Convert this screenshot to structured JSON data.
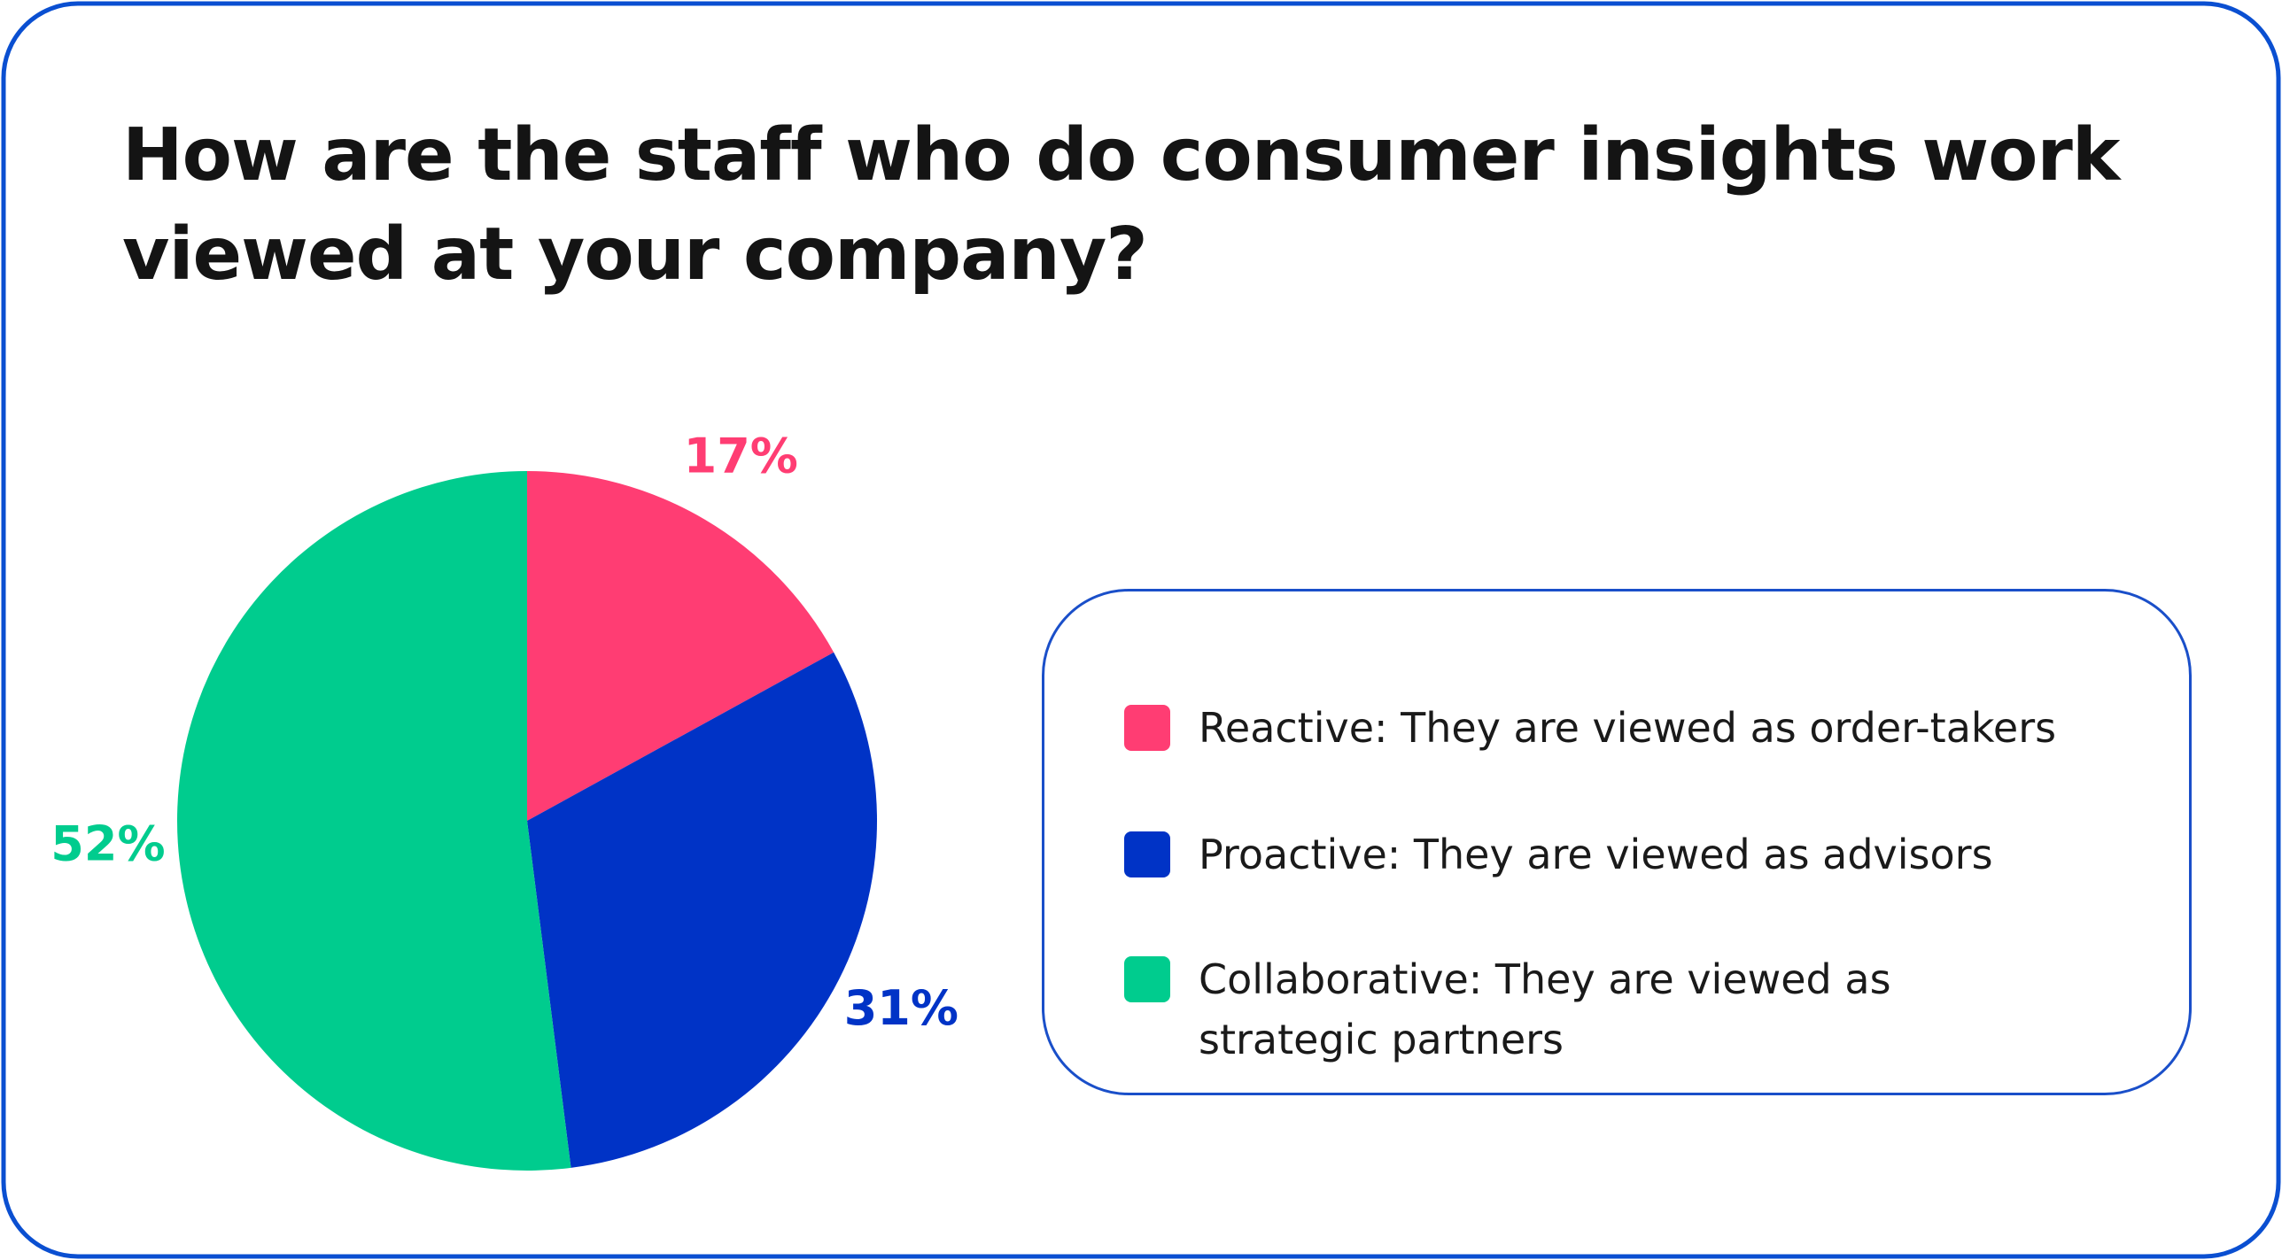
{
  "chart_data": {
    "type": "pie",
    "title": "How are the staff who do consumer insights work viewed at your company?",
    "categories": [
      "Reactive: They are viewed as order-takers",
      "Proactive: They are viewed as advisors",
      "Collaborative: They are viewed as strategic partners"
    ],
    "values": [
      17,
      31,
      52
    ],
    "value_labels": [
      "17%",
      "31%",
      "52%"
    ],
    "colors": [
      "#ff3d73",
      "#0033c6",
      "#00cc8e"
    ]
  }
}
